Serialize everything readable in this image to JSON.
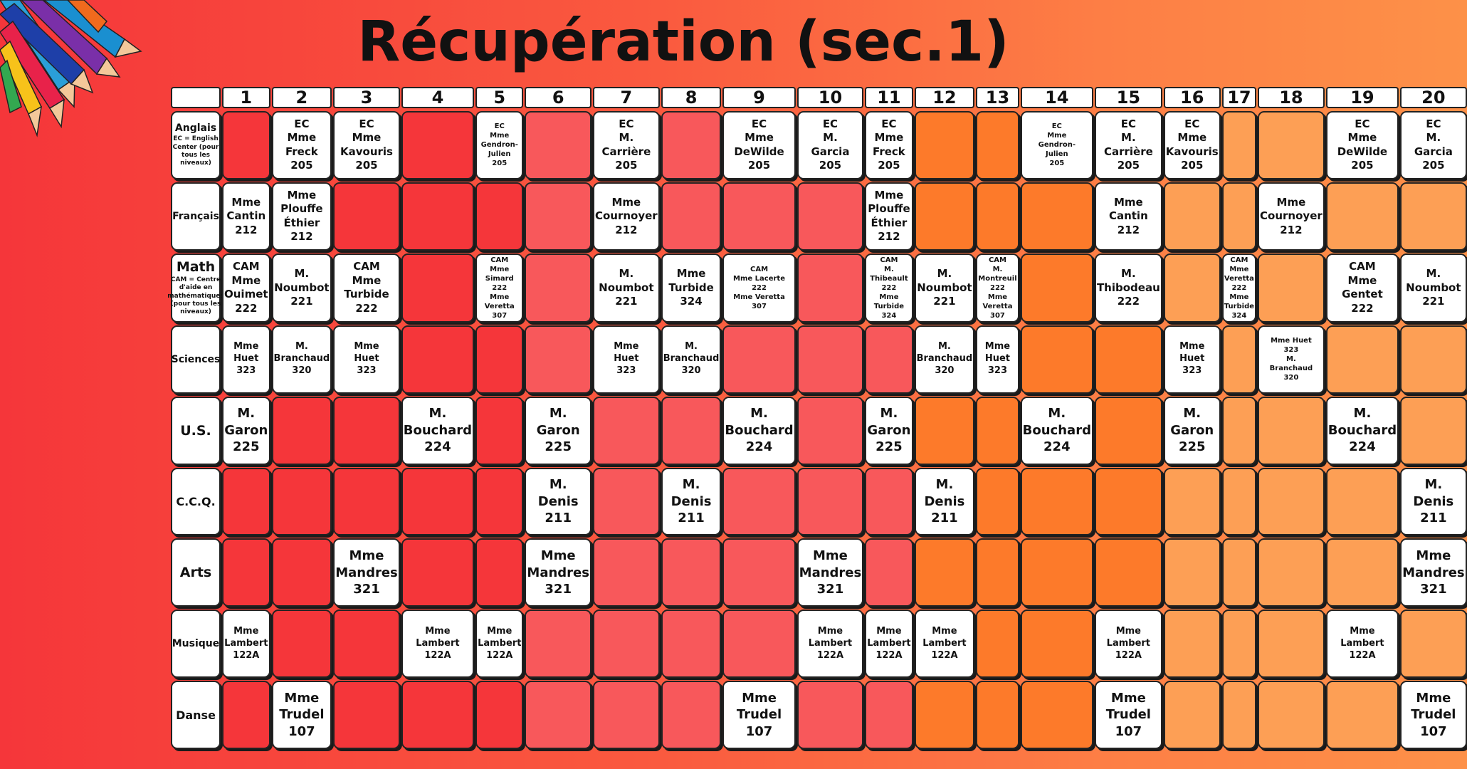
{
  "title": "Récupération (sec.1)",
  "colors": {
    "red": "#f5363a",
    "pink": "#f8585b",
    "orange": "#fd7a2a",
    "peach": "#fd9f55"
  },
  "column_colors": [
    "red",
    "red",
    "red",
    "red",
    "red",
    "pink",
    "pink",
    "pink",
    "pink",
    "pink",
    "pink",
    "orange",
    "orange",
    "orange",
    "orange",
    "peach",
    "peach",
    "peach",
    "peach",
    "peach"
  ],
  "days": [
    "1",
    "2",
    "3",
    "4",
    "5",
    "6",
    "7",
    "8",
    "9",
    "10",
    "11",
    "12",
    "13",
    "14",
    "15",
    "16",
    "17",
    "18",
    "19",
    "20"
  ],
  "rows": [
    {
      "subject": "Anglais",
      "note": "EC = English Center (pour tous les niveaux)",
      "size": "md",
      "cells": [
        "",
        "EC\nMme\nFreck\n205",
        "EC\nMme\nKavouris\n205",
        "",
        "EC\nMme\nGendron-\nJulien\n205",
        "",
        "EC\nM.\nCarrière\n205",
        "",
        "EC\nMme\nDeWilde\n205",
        "EC\nM.\nGarcia\n205",
        "EC\nMme\nFreck\n205",
        "",
        "",
        "EC\nMme\nGendron-\nJulien\n205",
        "EC\nM.\nCarrière\n205",
        "EC\nMme\nKavouris\n205",
        "",
        "",
        "EC\nMme\nDeWilde\n205",
        "EC\nM.\nGarcia\n205"
      ]
    },
    {
      "subject": "Français",
      "note": "",
      "size": "md",
      "cells": [
        "Mme\nCantin\n212",
        "Mme\nPlouffe\nÉthier\n212",
        "",
        "",
        "",
        "",
        "Mme\nCournoyer\n212",
        "",
        "",
        "",
        "Mme\nPlouffe\nÉthier\n212",
        "",
        "",
        "",
        "Mme\nCantin\n212",
        "",
        "",
        "Mme\nCournoyer\n212",
        "",
        ""
      ]
    },
    {
      "subject": "Math",
      "note": "CAM = Centre d'aide en mathématiques (pour tous les niveaux)",
      "size": "md",
      "cells": [
        "CAM\nMme\nOuimet\n222",
        "M.\nNoumbot\n221",
        "CAM\nMme\nTurbide\n222",
        "",
        "CAM\nMme Simard\n222\nMme Veretta\n307",
        "",
        "M.\nNoumbot\n221",
        "Mme\nTurbide\n324",
        "CAM\nMme Lacerte\n222\nMme Veretta\n307",
        "",
        "CAM\nM. Thibeault\n222\nMme Turbide\n324",
        "M.\nNoumbot\n221",
        "CAM\nM. Montreuil\n222\nMme Veretta\n307",
        "",
        "M.\nThibodeau\n222",
        "",
        "CAM\nMme Veretta\n222\nMme Turbide\n324",
        "",
        "CAM\nMme\nGentet\n222",
        "M.\nNoumbot\n221"
      ]
    },
    {
      "subject": "Sciences",
      "note": "",
      "size": "sm",
      "cells": [
        "Mme\nHuet\n323",
        "M.\nBranchaud\n320",
        "Mme\nHuet\n323",
        "",
        "",
        "",
        "Mme\nHuet\n323",
        "M.\nBranchaud\n320",
        "",
        "",
        "",
        "M.\nBranchaud\n320",
        "Mme\nHuet\n323",
        "",
        "",
        "Mme\nHuet\n323",
        "",
        "Mme Huet\n323\nM.\nBranchaud\n320",
        "",
        ""
      ]
    },
    {
      "subject": "U.S.",
      "note": "",
      "size": "lg",
      "cells": [
        "M.\nGaron\n225",
        "",
        "",
        "M.\nBouchard\n224",
        "",
        "M.\nGaron\n225",
        "",
        "",
        "M.\nBouchard\n224",
        "",
        "M.\nGaron\n225",
        "",
        "",
        "M.\nBouchard\n224",
        "",
        "M.\nGaron\n225",
        "",
        "",
        "M.\nBouchard\n224",
        ""
      ]
    },
    {
      "subject": "C.C.Q.",
      "note": "",
      "size": "lg",
      "cells": [
        "",
        "",
        "",
        "",
        "",
        "M.\nDenis\n211",
        "",
        "M.\nDenis\n211",
        "",
        "",
        "",
        "M.\nDenis\n211",
        "",
        "",
        "",
        "",
        "",
        "",
        "",
        "M.\nDenis\n211"
      ]
    },
    {
      "subject": "Arts",
      "note": "",
      "size": "lg",
      "cells": [
        "",
        "",
        "Mme\nMandres\n321",
        "",
        "",
        "Mme\nMandres\n321",
        "",
        "",
        "",
        "Mme\nMandres\n321",
        "",
        "",
        "",
        "",
        "",
        "",
        "",
        "",
        "",
        "Mme\nMandres\n321"
      ]
    },
    {
      "subject": "Musique",
      "note": "",
      "size": "sm",
      "cells": [
        "Mme\nLambert\n122A",
        "",
        "",
        "Mme\nLambert\n122A",
        "Mme\nLambert\n122A",
        "",
        "",
        "",
        "",
        "Mme\nLambert\n122A",
        "Mme\nLambert\n122A",
        "Mme\nLambert\n122A",
        "",
        "",
        "Mme\nLambert\n122A",
        "",
        "",
        "",
        "Mme\nLambert\n122A",
        ""
      ]
    },
    {
      "subject": "Danse",
      "note": "",
      "size": "lg",
      "cells": [
        "",
        "Mme\nTrudel\n107",
        "",
        "",
        "",
        "",
        "",
        "",
        "Mme\nTrudel\n107",
        "",
        "",
        "",
        "",
        "",
        "Mme\nTrudel\n107",
        "",
        "",
        "",
        "",
        "Mme\nTrudel\n107"
      ]
    }
  ]
}
